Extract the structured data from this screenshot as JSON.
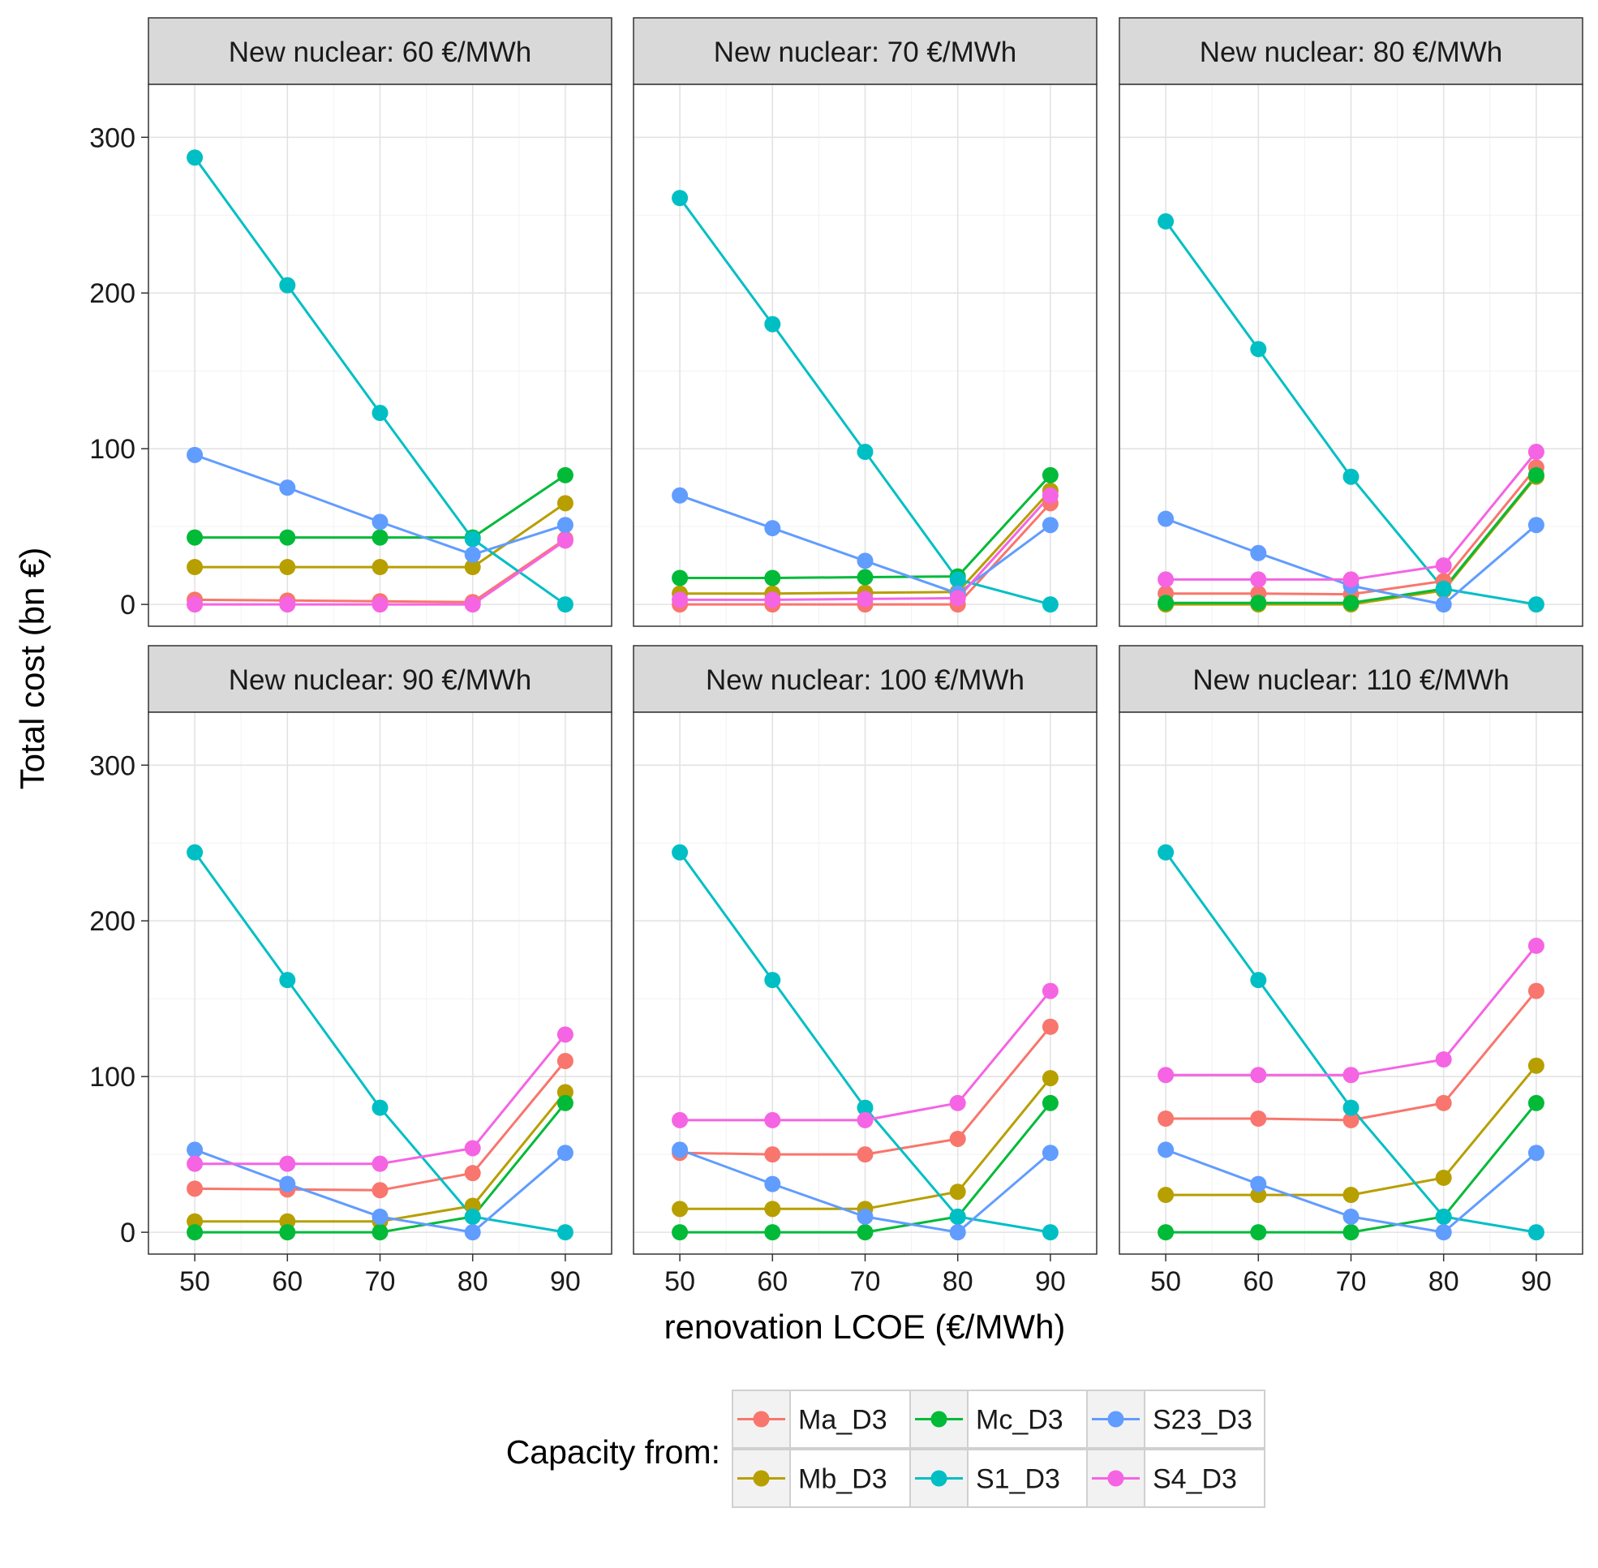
{
  "chart_data": {
    "type": "line",
    "facet_label": "New nuclear: {v} €/MWh",
    "xlabel": "renovation LCOE (€/MWh)",
    "ylabel": "Total cost (bn €)",
    "x": [
      50,
      60,
      70,
      80,
      90
    ],
    "xlim": [
      45,
      95
    ],
    "ylim": [
      -14,
      334
    ],
    "xticks": [
      50,
      60,
      70,
      80,
      90
    ],
    "yticks": [
      0,
      100,
      200,
      300
    ],
    "grid": true,
    "legend": {
      "title": "Capacity from:",
      "position": "bottom",
      "entries": [
        "Ma_D3",
        "Mc_D3",
        "S23_D3",
        "Mb_D3",
        "S1_D3",
        "S4_D3"
      ]
    },
    "colors": {
      "Ma_D3": "#F8766D",
      "Mb_D3": "#B79F00",
      "Mc_D3": "#00BA38",
      "S1_D3": "#00BFC4",
      "S23_D3": "#619CFF",
      "S4_D3": "#F564E3"
    },
    "panels": [
      {
        "nuclear": "60",
        "series": [
          {
            "name": "Ma_D3",
            "values": [
              3,
              2.5,
              2,
              1.5,
              42
            ]
          },
          {
            "name": "Mb_D3",
            "values": [
              24,
              24,
              24,
              24,
              65
            ]
          },
          {
            "name": "Mc_D3",
            "values": [
              43,
              43,
              43,
              43,
              83
            ]
          },
          {
            "name": "S1_D3",
            "values": [
              287,
              205,
              123,
              42,
              0
            ]
          },
          {
            "name": "S23_D3",
            "values": [
              96,
              75,
              53,
              32,
              51
            ]
          },
          {
            "name": "S4_D3",
            "values": [
              0,
              0,
              0,
              0,
              41
            ]
          }
        ]
      },
      {
        "nuclear": "70",
        "series": [
          {
            "name": "Ma_D3",
            "values": [
              0,
              0,
              0,
              0,
              65
            ]
          },
          {
            "name": "Mb_D3",
            "values": [
              7,
              7,
              7.5,
              8,
              73
            ]
          },
          {
            "name": "Mc_D3",
            "values": [
              17,
              17,
              17.5,
              18,
              83
            ]
          },
          {
            "name": "S1_D3",
            "values": [
              261,
              180,
              98,
              16,
              0
            ]
          },
          {
            "name": "S23_D3",
            "values": [
              70,
              49,
              28,
              7,
              51
            ]
          },
          {
            "name": "S4_D3",
            "values": [
              3,
              3,
              3.5,
              4,
              70
            ]
          }
        ]
      },
      {
        "nuclear": "80",
        "series": [
          {
            "name": "Ma_D3",
            "values": [
              7,
              7,
              6.5,
              15,
              88
            ]
          },
          {
            "name": "Mb_D3",
            "values": [
              0,
              0,
              0,
              9,
              82
            ]
          },
          {
            "name": "Mc_D3",
            "values": [
              1,
              1,
              1,
              10,
              83
            ]
          },
          {
            "name": "S1_D3",
            "values": [
              246,
              164,
              82,
              10,
              0
            ]
          },
          {
            "name": "S23_D3",
            "values": [
              55,
              33,
              12,
              0,
              51
            ]
          },
          {
            "name": "S4_D3",
            "values": [
              16,
              16,
              16,
              25,
              98
            ]
          }
        ]
      },
      {
        "nuclear": "90",
        "series": [
          {
            "name": "Ma_D3",
            "values": [
              28,
              27.5,
              27,
              38,
              110
            ]
          },
          {
            "name": "Mb_D3",
            "values": [
              7,
              7,
              7,
              17,
              90
            ]
          },
          {
            "name": "Mc_D3",
            "values": [
              0,
              0,
              0,
              10,
              83
            ]
          },
          {
            "name": "S1_D3",
            "values": [
              244,
              162,
              80,
              10,
              0
            ]
          },
          {
            "name": "S23_D3",
            "values": [
              53,
              31,
              10,
              0,
              51
            ]
          },
          {
            "name": "S4_D3",
            "values": [
              44,
              44,
              44,
              54,
              127
            ]
          }
        ]
      },
      {
        "nuclear": "100",
        "series": [
          {
            "name": "Ma_D3",
            "values": [
              51,
              50,
              50,
              60,
              132
            ]
          },
          {
            "name": "Mb_D3",
            "values": [
              15,
              15,
              15,
              26,
              99
            ]
          },
          {
            "name": "Mc_D3",
            "values": [
              0,
              0,
              0,
              10,
              83
            ]
          },
          {
            "name": "S1_D3",
            "values": [
              244,
              162,
              80,
              10,
              0
            ]
          },
          {
            "name": "S23_D3",
            "values": [
              53,
              31,
              10,
              0,
              51
            ]
          },
          {
            "name": "S4_D3",
            "values": [
              72,
              72,
              72,
              83,
              155
            ]
          }
        ]
      },
      {
        "nuclear": "110",
        "series": [
          {
            "name": "Ma_D3",
            "values": [
              73,
              73,
              72,
              83,
              155
            ]
          },
          {
            "name": "Mb_D3",
            "values": [
              24,
              24,
              24,
              35,
              107
            ]
          },
          {
            "name": "Mc_D3",
            "values": [
              0,
              0,
              0,
              10,
              83
            ]
          },
          {
            "name": "S1_D3",
            "values": [
              244,
              162,
              80,
              10,
              0
            ]
          },
          {
            "name": "S23_D3",
            "values": [
              53,
              31,
              10,
              0,
              51
            ]
          },
          {
            "name": "S4_D3",
            "values": [
              101,
              101,
              101,
              111,
              184
            ]
          }
        ]
      }
    ]
  }
}
